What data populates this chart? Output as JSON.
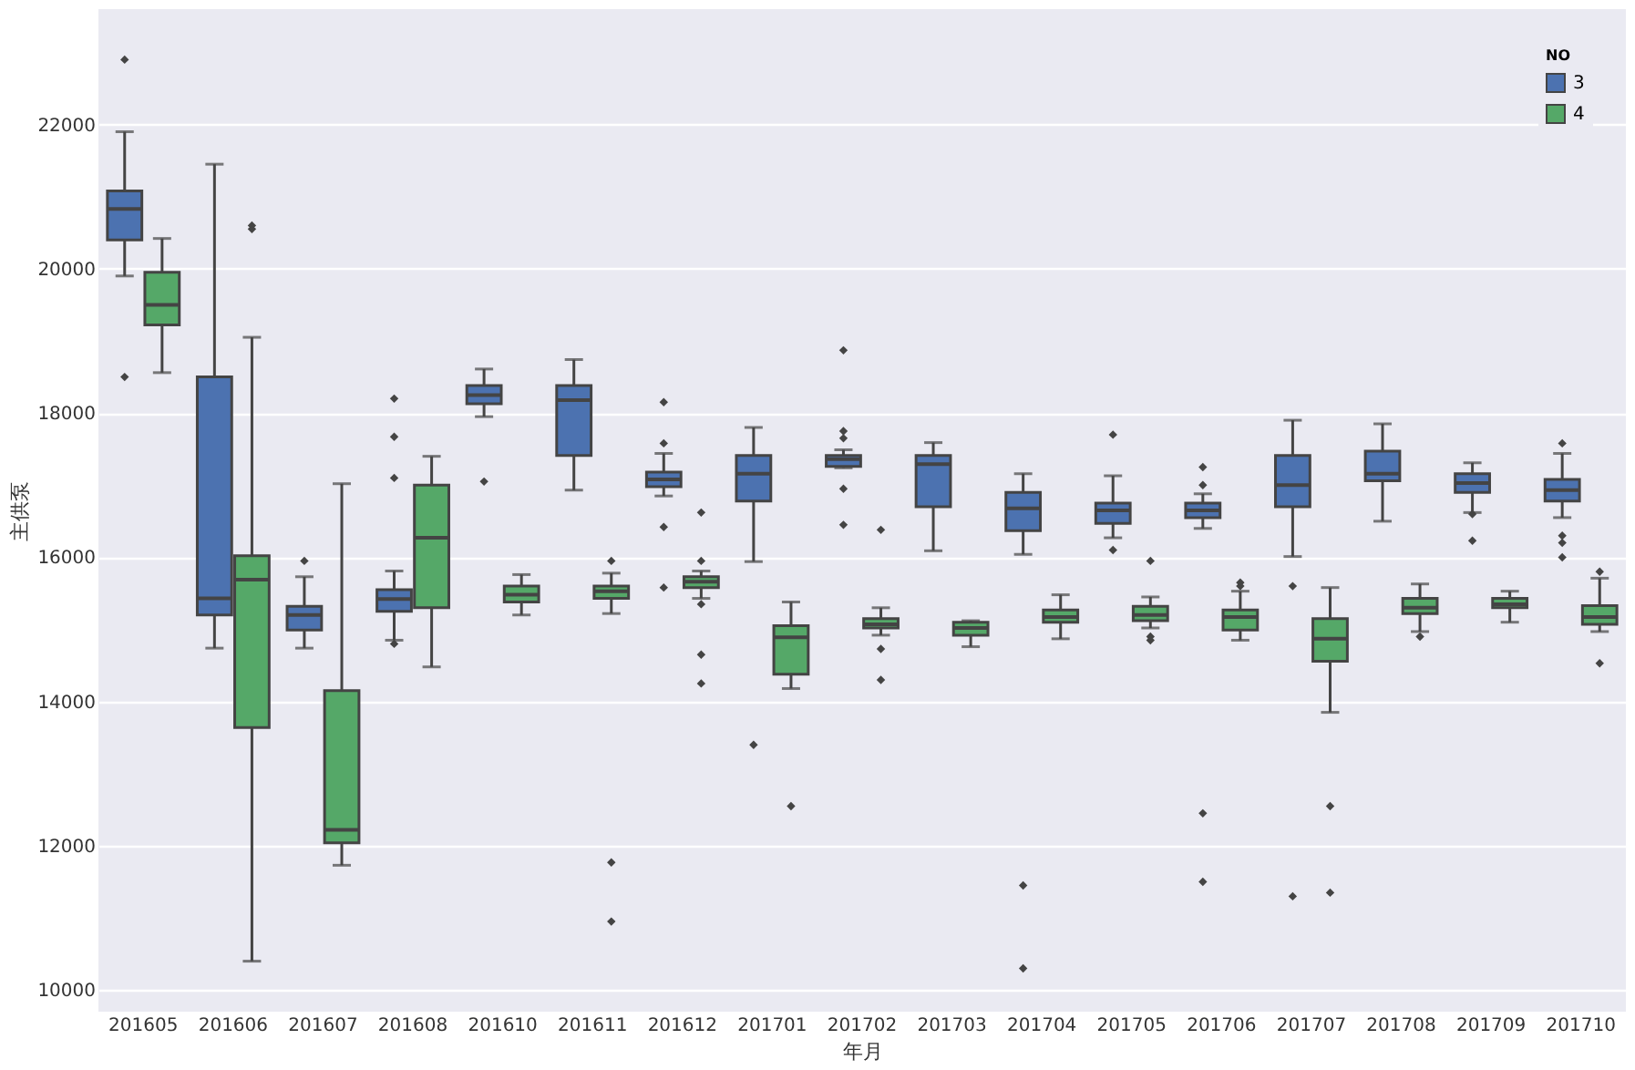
{
  "chart_data": {
    "type": "box",
    "xlabel": "年月",
    "ylabel": "主供泵",
    "legend_title": "NO",
    "legend": "top right",
    "grid": "y",
    "categories": [
      "201605",
      "201606",
      "201607",
      "201608",
      "201610",
      "201611",
      "201612",
      "201701",
      "201702",
      "201703",
      "201704",
      "201705",
      "201706",
      "201707",
      "201708",
      "201709",
      "201710"
    ],
    "ylim": [
      9700,
      23600
    ],
    "yticks": [
      10000,
      12000,
      14000,
      16000,
      18000,
      20000,
      22000
    ],
    "series": [
      {
        "name": "3",
        "color": "#4c72b0",
        "boxes": [
          {
            "low": 19900,
            "q1": 20400,
            "median": 20830,
            "q3": 21080,
            "high": 21900,
            "outliers": [
              22900,
              18500
            ]
          },
          {
            "low": 14740,
            "q1": 15200,
            "median": 15430,
            "q3": 18500,
            "high": 21450
          },
          {
            "low": 14740,
            "q1": 14990,
            "median": 15200,
            "q3": 15320,
            "high": 15730,
            "outliers": [
              15950
            ]
          },
          {
            "low": 14850,
            "q1": 15250,
            "median": 15420,
            "q3": 15550,
            "high": 15810,
            "outliers": [
              18200,
              17670,
              17100,
              14800
            ]
          },
          {
            "low": 17950,
            "q1": 18130,
            "median": 18250,
            "q3": 18380,
            "high": 18610,
            "outliers": [
              17050
            ]
          },
          {
            "low": 16930,
            "q1": 17410,
            "median": 18180,
            "q3": 18380,
            "high": 18740
          },
          {
            "low": 16850,
            "q1": 16980,
            "median": 17080,
            "q3": 17180,
            "high": 17440,
            "outliers": [
              18150,
              17580,
              16420,
              15580
            ]
          },
          {
            "low": 15940,
            "q1": 16780,
            "median": 17160,
            "q3": 17410,
            "high": 17800,
            "outliers": [
              13400
            ]
          },
          {
            "low": 17240,
            "q1": 17260,
            "median": 17360,
            "q3": 17410,
            "high": 17490,
            "outliers": [
              18870,
              17750,
              17650,
              16950,
              16450
            ]
          },
          {
            "low": 16090,
            "q1": 16700,
            "median": 17290,
            "q3": 17410,
            "high": 17590
          },
          {
            "low": 16040,
            "q1": 16370,
            "median": 16680,
            "q3": 16900,
            "high": 17160,
            "outliers": [
              11450,
              10300
            ]
          },
          {
            "low": 16270,
            "q1": 16470,
            "median": 16650,
            "q3": 16750,
            "high": 17130,
            "outliers": [
              17700,
              16100
            ]
          },
          {
            "low": 16400,
            "q1": 16550,
            "median": 16650,
            "q3": 16750,
            "high": 16880,
            "outliers": [
              17250,
              17000,
              12450,
              11500
            ]
          },
          {
            "low": 16010,
            "q1": 16700,
            "median": 17000,
            "q3": 17410,
            "high": 17900,
            "outliers": [
              15600,
              11300
            ]
          },
          {
            "low": 16500,
            "q1": 17060,
            "median": 17160,
            "q3": 17470,
            "high": 17850
          },
          {
            "low": 16620,
            "q1": 16900,
            "median": 17030,
            "q3": 17160,
            "high": 17310,
            "outliers": [
              16600,
              16230
            ]
          },
          {
            "low": 16550,
            "q1": 16780,
            "median": 16930,
            "q3": 17080,
            "high": 17440,
            "outliers": [
              17580,
              16300,
              16200,
              16000
            ]
          }
        ]
      },
      {
        "name": "4",
        "color": "#55a868",
        "boxes": [
          {
            "low": 18560,
            "q1": 19220,
            "median": 19500,
            "q3": 19950,
            "high": 20420
          },
          {
            "low": 10400,
            "q1": 13640,
            "median": 15690,
            "q3": 16020,
            "high": 19050,
            "outliers": [
              20600,
              20550
            ]
          },
          {
            "low": 11730,
            "q1": 12040,
            "median": 12220,
            "q3": 14150,
            "high": 17020
          },
          {
            "low": 14480,
            "q1": 15300,
            "median": 16270,
            "q3": 17000,
            "high": 17400
          },
          {
            "low": 15200,
            "q1": 15380,
            "median": 15480,
            "q3": 15600,
            "high": 15760
          },
          {
            "low": 15220,
            "q1": 15430,
            "median": 15530,
            "q3": 15600,
            "high": 15780,
            "outliers": [
              15950,
              11770,
              10950
            ]
          },
          {
            "low": 15430,
            "q1": 15580,
            "median": 15660,
            "q3": 15730,
            "high": 15810,
            "outliers": [
              16620,
              15950,
              15350,
              14650,
              14250
            ]
          },
          {
            "low": 14180,
            "q1": 14380,
            "median": 14890,
            "q3": 15050,
            "high": 15380,
            "outliers": [
              12550
            ]
          },
          {
            "low": 14920,
            "q1": 15020,
            "median": 15070,
            "q3": 15150,
            "high": 15300,
            "outliers": [
              16380,
              14730,
              14300
            ]
          },
          {
            "low": 14760,
            "q1": 14920,
            "median": 15020,
            "q3": 15100,
            "high": 15120
          },
          {
            "low": 14870,
            "q1": 15100,
            "median": 15170,
            "q3": 15270,
            "high": 15480
          },
          {
            "low": 15020,
            "q1": 15120,
            "median": 15200,
            "q3": 15320,
            "high": 15450,
            "outliers": [
              15950,
              14900,
              14850
            ]
          },
          {
            "low": 14850,
            "q1": 14990,
            "median": 15170,
            "q3": 15270,
            "high": 15530,
            "outliers": [
              15650,
              15600
            ]
          },
          {
            "low": 13850,
            "q1": 14560,
            "median": 14870,
            "q3": 15150,
            "high": 15580,
            "outliers": [
              12550,
              11350
            ]
          },
          {
            "low": 14970,
            "q1": 15220,
            "median": 15300,
            "q3": 15430,
            "high": 15630,
            "outliers": [
              14900
            ]
          },
          {
            "low": 15100,
            "q1": 15300,
            "median": 15350,
            "q3": 15430,
            "high": 15530
          },
          {
            "low": 14970,
            "q1": 15070,
            "median": 15170,
            "q3": 15330,
            "high": 15710,
            "outliers": [
              15800,
              14530
            ]
          }
        ]
      }
    ]
  }
}
